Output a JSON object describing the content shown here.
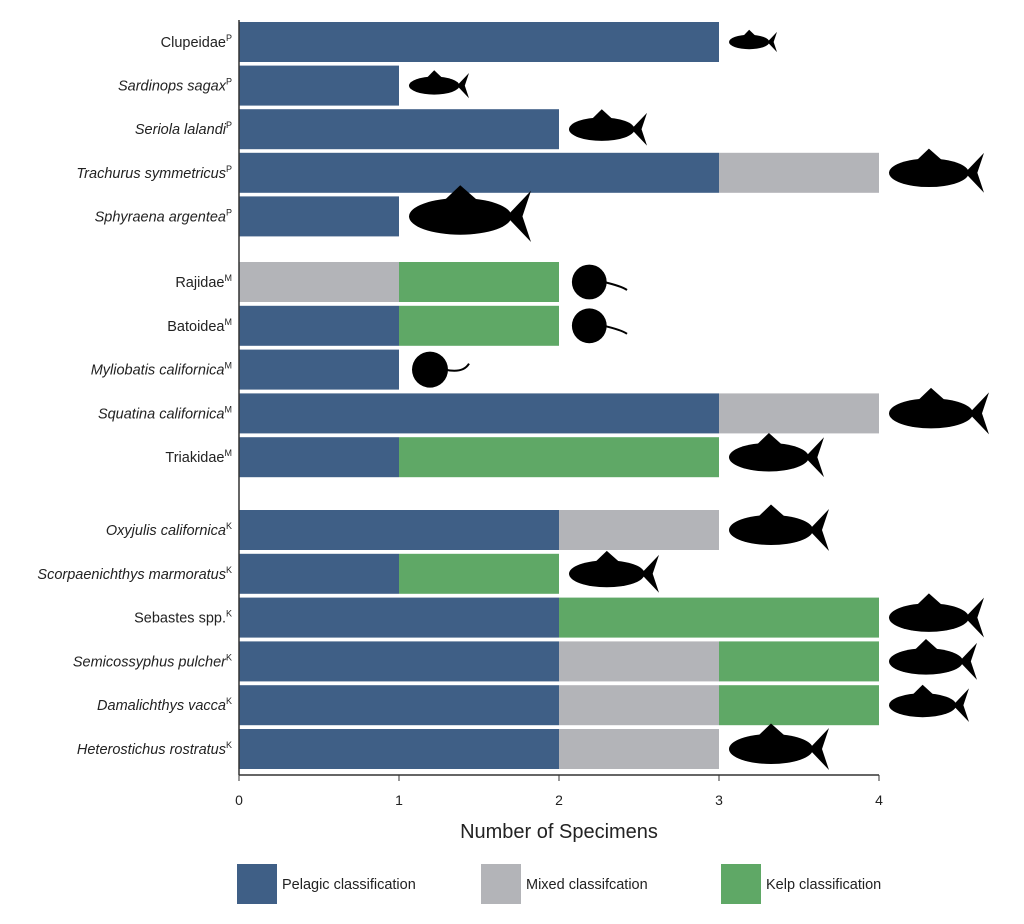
{
  "chart_data": {
    "type": "bar",
    "orientation": "horizontal",
    "stacked": true,
    "xlabel": "Number of Specimens",
    "ylabel": "",
    "xlim": [
      0,
      4
    ],
    "xticks": [
      "0",
      "1",
      "2",
      "3",
      "4"
    ],
    "grid": false,
    "legend_placement": "bottom",
    "series": [
      {
        "name": "Pelagic classification",
        "color": "#3f5f86"
      },
      {
        "name": "Mixed classifcation",
        "color": "#b3b4b8"
      },
      {
        "name": "Kelp classification",
        "color": "#5fa866"
      }
    ],
    "groups": [
      {
        "superscript": "P",
        "rows": [
          {
            "name": "Clupeidae",
            "italic": false,
            "values": [
              3,
              0,
              0
            ],
            "icon": "herring-silhouette-icon"
          },
          {
            "name": "Sardinops sagax",
            "italic": true,
            "values": [
              1,
              0,
              0
            ],
            "icon": "sardine-silhouette-icon"
          },
          {
            "name": "Seriola lalandi",
            "italic": true,
            "values": [
              2,
              0,
              0
            ],
            "icon": "yellowtail-silhouette-icon"
          },
          {
            "name": "Trachurus symmetricus",
            "italic": true,
            "values": [
              3,
              1,
              0
            ],
            "icon": "jack-mackerel-silhouette-icon"
          },
          {
            "name": "Sphyraena argentea",
            "italic": true,
            "values": [
              1,
              0,
              0
            ],
            "icon": "barracuda-silhouette-icon"
          }
        ]
      },
      {
        "superscript": "M",
        "rows": [
          {
            "name": "Rajidae",
            "italic": false,
            "values": [
              0,
              1,
              1
            ],
            "icon": "skate-silhouette-icon"
          },
          {
            "name": "Batoidea",
            "italic": false,
            "values": [
              1,
              0,
              1
            ],
            "icon": "ray-silhouette-icon"
          },
          {
            "name": "Myliobatis californica",
            "italic": true,
            "values": [
              1,
              0,
              0
            ],
            "icon": "bat-ray-silhouette-icon"
          },
          {
            "name": "Squatina californica",
            "italic": true,
            "values": [
              3,
              1,
              0
            ],
            "icon": "angel-shark-silhouette-icon"
          },
          {
            "name": "Triakidae",
            "italic": false,
            "values": [
              1,
              0,
              2
            ],
            "icon": "houndshark-silhouette-icon"
          }
        ]
      },
      {
        "superscript": "K",
        "rows": [
          {
            "name": "Oxyjulis californica",
            "italic": true,
            "values": [
              2,
              1,
              0
            ],
            "icon": "senorita-silhouette-icon"
          },
          {
            "name": "Scorpaenichthys marmoratus",
            "italic": true,
            "values": [
              1,
              0,
              1
            ],
            "icon": "cabezon-silhouette-icon"
          },
          {
            "name": "Sebastes spp.",
            "italic": false,
            "values": [
              2,
              0,
              2
            ],
            "icon": "rockfish-silhouette-icon"
          },
          {
            "name": "Semicossyphus pulcher",
            "italic": true,
            "values": [
              2,
              1,
              1
            ],
            "icon": "sheephead-silhouette-icon"
          },
          {
            "name": "Damalichthys vacca",
            "italic": true,
            "values": [
              2,
              1,
              1
            ],
            "icon": "pile-perch-silhouette-icon"
          },
          {
            "name": "Heterostichus rostratus",
            "italic": true,
            "values": [
              2,
              1,
              0
            ],
            "icon": "kelpfish-silhouette-icon"
          }
        ]
      }
    ]
  }
}
